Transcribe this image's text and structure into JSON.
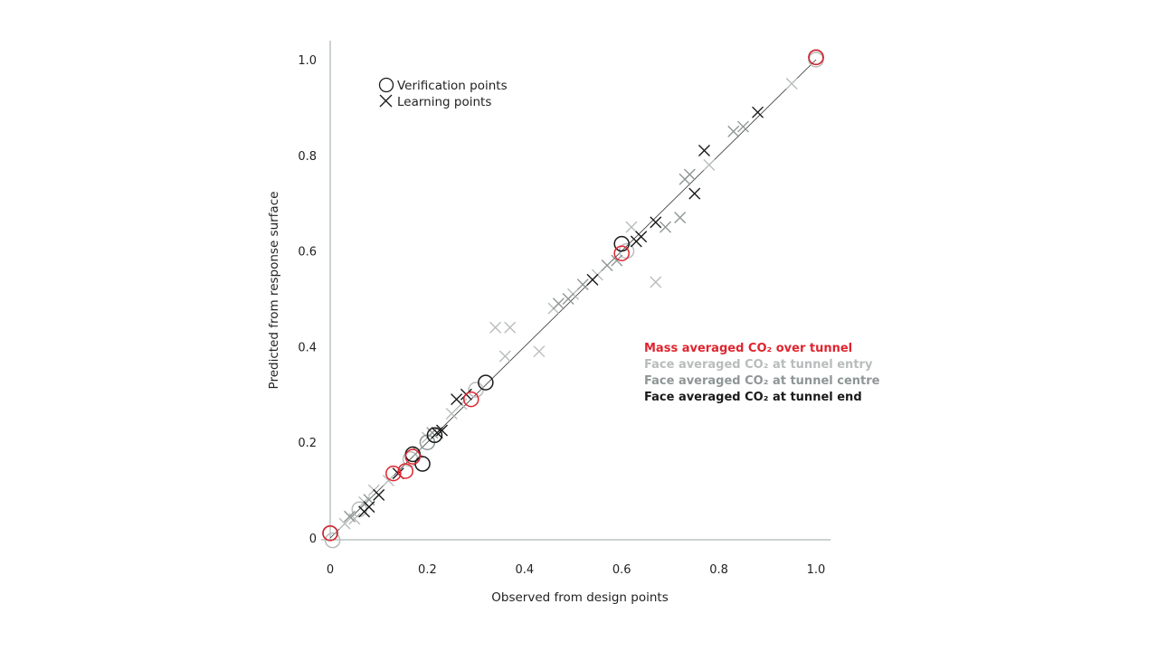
{
  "colors": {
    "mass_averaged": "#e0242f",
    "tunnel_entry": "#b9bcbc",
    "tunnel_centre": "#8f9696",
    "tunnel_end": "#1a1a1a",
    "axis": "#9aa3a3",
    "diagonal": "#333333"
  },
  "chart_data": {
    "type": "scatter",
    "title": "",
    "xlabel": "Observed from design points",
    "ylabel": "Predicted from response surface",
    "xlim": [
      0,
      1.0
    ],
    "ylim": [
      0,
      1.0
    ],
    "xticks": [
      "0",
      "0.2",
      "0.4",
      "0.6",
      "0.8",
      "1.0"
    ],
    "yticks": [
      "0",
      "0.2",
      "0.4",
      "0.6",
      "0.8",
      "1.0"
    ],
    "grid": false,
    "reference_line": {
      "x": [
        0,
        1.0
      ],
      "y": [
        0,
        1.0
      ]
    },
    "marker_legend": [
      {
        "marker": "circle",
        "label": "Verification points"
      },
      {
        "marker": "cross",
        "label": "Learning points"
      }
    ],
    "series": [
      {
        "name": "Mass averaged CO₂ over tunnel",
        "color_key": "mass_averaged",
        "verification": [
          [
            0.0,
            0.01
          ],
          [
            0.13,
            0.135
          ],
          [
            0.155,
            0.14
          ],
          [
            0.17,
            0.17
          ],
          [
            0.29,
            0.29
          ],
          [
            0.6,
            0.595
          ],
          [
            1.0,
            1.005
          ]
        ],
        "learning": []
      },
      {
        "name": "Face averaged CO₂ at tunnel entry",
        "color_key": "tunnel_entry",
        "verification": [
          [
            0.005,
            -0.005
          ],
          [
            0.06,
            0.06
          ],
          [
            0.165,
            0.165
          ],
          [
            0.3,
            0.31
          ],
          [
            0.61,
            0.6
          ],
          [
            1.0,
            1.0
          ]
        ],
        "learning": [
          [
            0.03,
            0.03
          ],
          [
            0.05,
            0.04
          ],
          [
            0.07,
            0.075
          ],
          [
            0.09,
            0.1
          ],
          [
            0.12,
            0.12
          ],
          [
            0.2,
            0.21
          ],
          [
            0.25,
            0.26
          ],
          [
            0.27,
            0.28
          ],
          [
            0.34,
            0.44
          ],
          [
            0.37,
            0.44
          ],
          [
            0.43,
            0.39
          ],
          [
            0.36,
            0.38
          ],
          [
            0.46,
            0.48
          ],
          [
            0.5,
            0.51
          ],
          [
            0.55,
            0.55
          ],
          [
            0.62,
            0.65
          ],
          [
            0.67,
            0.535
          ],
          [
            0.78,
            0.78
          ],
          [
            0.95,
            0.95
          ]
        ]
      },
      {
        "name": "Face averaged CO₂ at tunnel centre",
        "color_key": "tunnel_centre",
        "verification": [
          [
            0.2,
            0.2
          ]
        ],
        "learning": [
          [
            0.04,
            0.045
          ],
          [
            0.08,
            0.08
          ],
          [
            0.18,
            0.18
          ],
          [
            0.21,
            0.22
          ],
          [
            0.47,
            0.49
          ],
          [
            0.49,
            0.5
          ],
          [
            0.52,
            0.53
          ],
          [
            0.57,
            0.57
          ],
          [
            0.59,
            0.58
          ],
          [
            0.69,
            0.65
          ],
          [
            0.72,
            0.67
          ],
          [
            0.73,
            0.75
          ],
          [
            0.74,
            0.76
          ],
          [
            0.83,
            0.85
          ],
          [
            0.85,
            0.86
          ]
        ]
      },
      {
        "name": "Face averaged CO₂ at tunnel end",
        "color_key": "tunnel_end",
        "verification": [
          [
            0.0,
            0.01
          ],
          [
            0.17,
            0.175
          ],
          [
            0.19,
            0.155
          ],
          [
            0.215,
            0.215
          ],
          [
            0.32,
            0.325
          ],
          [
            0.6,
            0.615
          ],
          [
            1.0,
            1.005
          ]
        ],
        "learning": [
          [
            0.07,
            0.055
          ],
          [
            0.08,
            0.065
          ],
          [
            0.1,
            0.09
          ],
          [
            0.14,
            0.135
          ],
          [
            0.22,
            0.22
          ],
          [
            0.23,
            0.225
          ],
          [
            0.26,
            0.29
          ],
          [
            0.28,
            0.3
          ],
          [
            0.54,
            0.54
          ],
          [
            0.63,
            0.62
          ],
          [
            0.64,
            0.63
          ],
          [
            0.67,
            0.66
          ],
          [
            0.75,
            0.72
          ],
          [
            0.77,
            0.81
          ],
          [
            0.88,
            0.89
          ]
        ]
      }
    ]
  }
}
